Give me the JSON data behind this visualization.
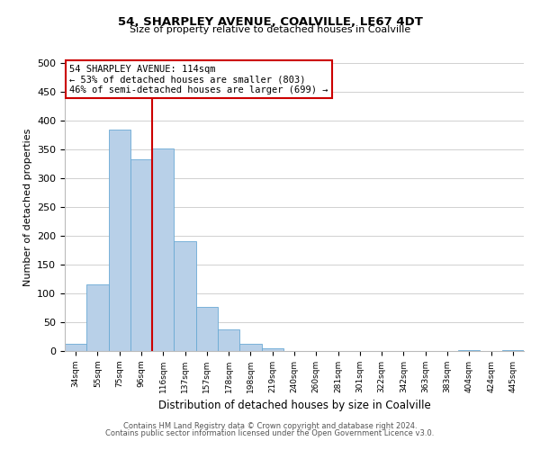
{
  "title1": "54, SHARPLEY AVENUE, COALVILLE, LE67 4DT",
  "title2": "Size of property relative to detached houses in Coalville",
  "xlabel": "Distribution of detached houses by size in Coalville",
  "ylabel": "Number of detached properties",
  "bin_labels": [
    "34sqm",
    "55sqm",
    "75sqm",
    "96sqm",
    "116sqm",
    "137sqm",
    "157sqm",
    "178sqm",
    "198sqm",
    "219sqm",
    "240sqm",
    "260sqm",
    "281sqm",
    "301sqm",
    "322sqm",
    "342sqm",
    "363sqm",
    "383sqm",
    "404sqm",
    "424sqm",
    "445sqm"
  ],
  "bar_heights": [
    12,
    115,
    385,
    333,
    352,
    190,
    76,
    38,
    12,
    5,
    0,
    0,
    0,
    0,
    0,
    0,
    0,
    0,
    1,
    0,
    1
  ],
  "bar_color": "#b8d0e8",
  "bar_edge_color": "#6aaad4",
  "property_line_color": "#cc0000",
  "annotation_line1": "54 SHARPLEY AVENUE: 114sqm",
  "annotation_line2": "← 53% of detached houses are smaller (803)",
  "annotation_line3": "46% of semi-detached houses are larger (699) →",
  "annotation_box_color": "#ffffff",
  "annotation_box_edge": "#cc0000",
  "ylim": [
    0,
    500
  ],
  "yticks": [
    0,
    50,
    100,
    150,
    200,
    250,
    300,
    350,
    400,
    450,
    500
  ],
  "footer1": "Contains HM Land Registry data © Crown copyright and database right 2024.",
  "footer2": "Contains public sector information licensed under the Open Government Licence v3.0.",
  "bg_color": "#ffffff",
  "grid_color": "#d0d0d0"
}
